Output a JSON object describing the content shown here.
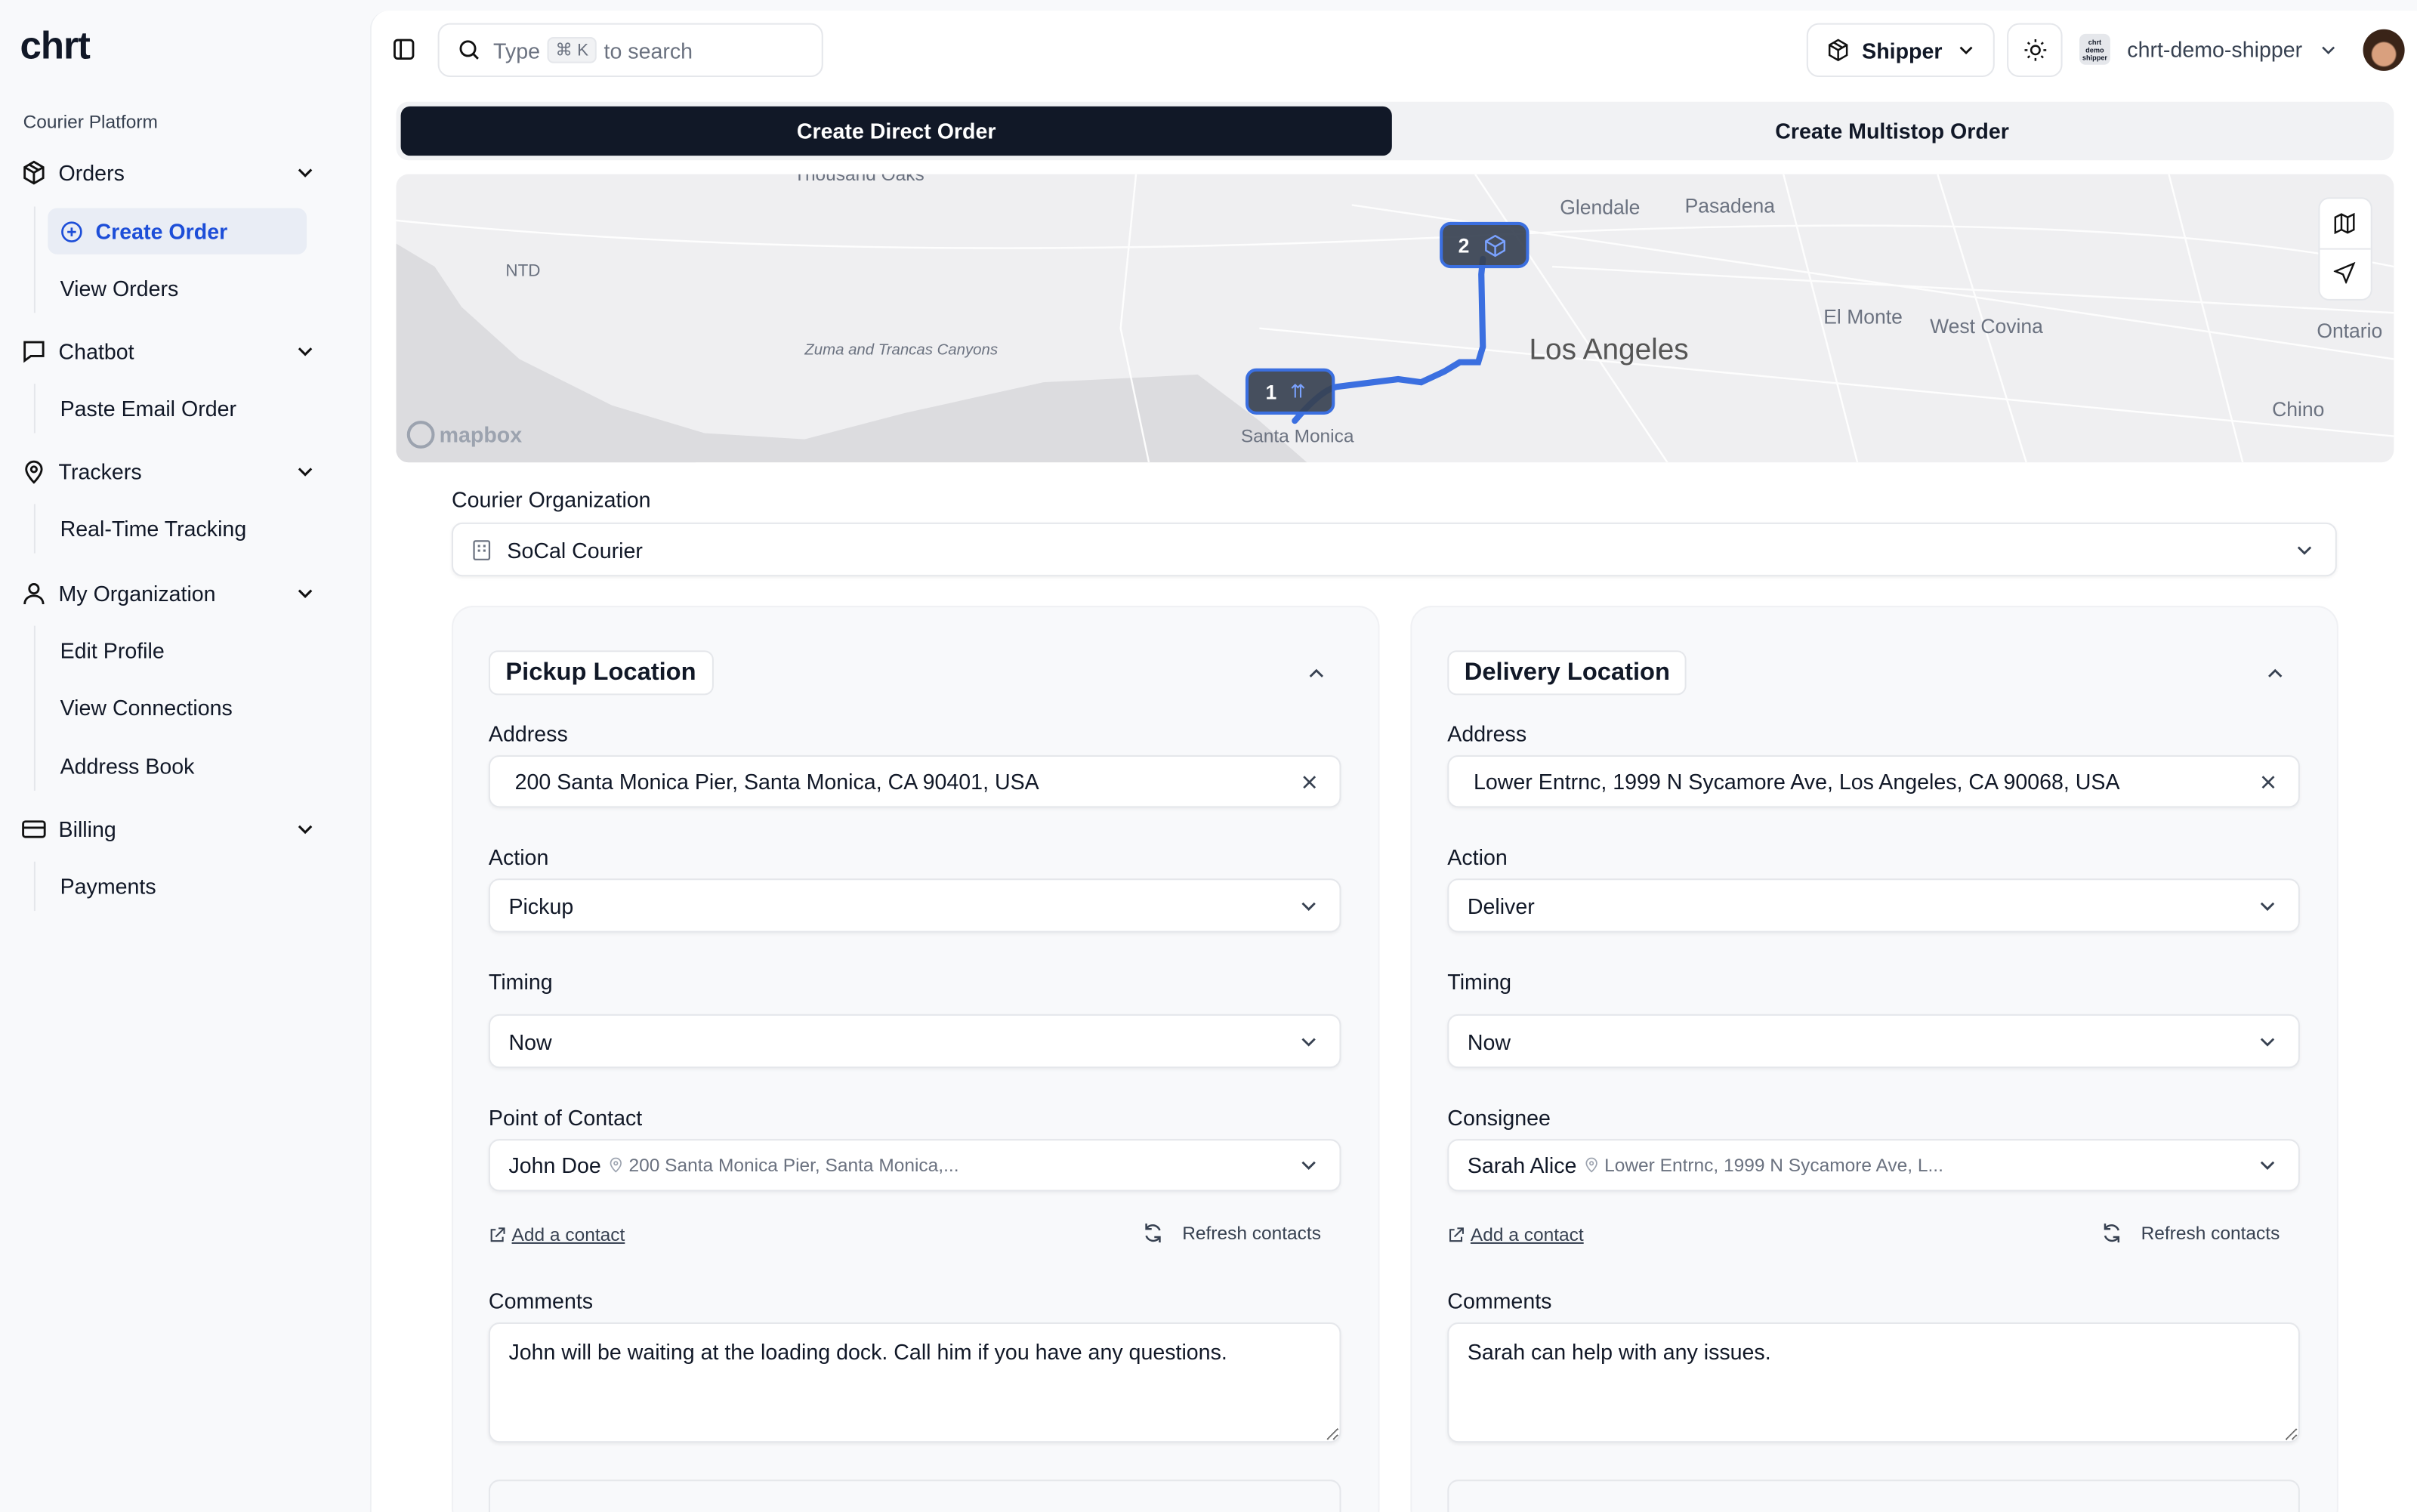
{
  "app": {
    "logo": "chrt",
    "section": "Courier Platform"
  },
  "sidebar": {
    "groups": [
      {
        "label": "Orders",
        "icon": "package-icon",
        "items": [
          "Create Order",
          "View Orders"
        ]
      },
      {
        "label": "Chatbot",
        "icon": "message-icon",
        "items": [
          "Paste Email Order"
        ]
      },
      {
        "label": "Trackers",
        "icon": "map-pin-icon",
        "items": [
          "Real-Time Tracking"
        ]
      },
      {
        "label": "My Organization",
        "icon": "user-icon",
        "items": [
          "Edit Profile",
          "View Connections",
          "Address Book"
        ]
      },
      {
        "label": "Billing",
        "icon": "credit-card-icon",
        "items": [
          "Payments"
        ]
      }
    ],
    "active_item": "Create Order"
  },
  "header": {
    "search_pre": "Type",
    "search_kbd": "⌘ K",
    "search_post": "to search",
    "role": "Shipper",
    "org_avatar": "chrt demo shipper",
    "org_name": "chrt-demo-shipper"
  },
  "tabs": [
    {
      "label": "Create Direct Order",
      "active": true
    },
    {
      "label": "Create Multistop Order",
      "active": false
    }
  ],
  "map": {
    "labels": [
      "Thousand Oaks",
      "Glendale",
      "Pasadena",
      "NTD",
      "Zuma and Trancas Canyons",
      "Los Angeles",
      "El Monte",
      "West Covina",
      "Ontario",
      "Santa Monica",
      "Chino"
    ],
    "attribution": "mapbox",
    "markers": [
      {
        "n": "1",
        "icon": "pickup-arrows-icon"
      },
      {
        "n": "2",
        "icon": "package-icon"
      }
    ],
    "route_color": "#3b6fe0"
  },
  "courier": {
    "label": "Courier Organization",
    "value": "SoCal Courier"
  },
  "pickup": {
    "title": "Pickup Location",
    "address_label": "Address",
    "address": "200 Santa Monica Pier, Santa Monica, CA 90401, USA",
    "action_label": "Action",
    "action": "Pickup",
    "timing_label": "Timing",
    "timing": "Now",
    "contact_label": "Point of Contact",
    "contact_name": "John Doe",
    "contact_addr": "200 Santa Monica Pier, Santa Monica,...",
    "add_contact": "Add a contact",
    "refresh": "Refresh contacts",
    "comments_label": "Comments",
    "comments": "John will be waiting at the loading dock. Call him if you have any questions."
  },
  "delivery": {
    "title": "Delivery Location",
    "address_label": "Address",
    "address": "Lower Entrnc, 1999 N Sycamore Ave, Los Angeles, CA 90068, USA",
    "action_label": "Action",
    "action": "Deliver",
    "timing_label": "Timing",
    "timing": "Now",
    "contact_label": "Consignee",
    "contact_name": "Sarah Alice",
    "contact_addr": "Lower Entrnc, 1999 N Sycamore Ave, L...",
    "add_contact": "Add a contact",
    "refresh": "Refresh contacts",
    "comments_label": "Comments",
    "comments": "Sarah can help with any issues."
  }
}
